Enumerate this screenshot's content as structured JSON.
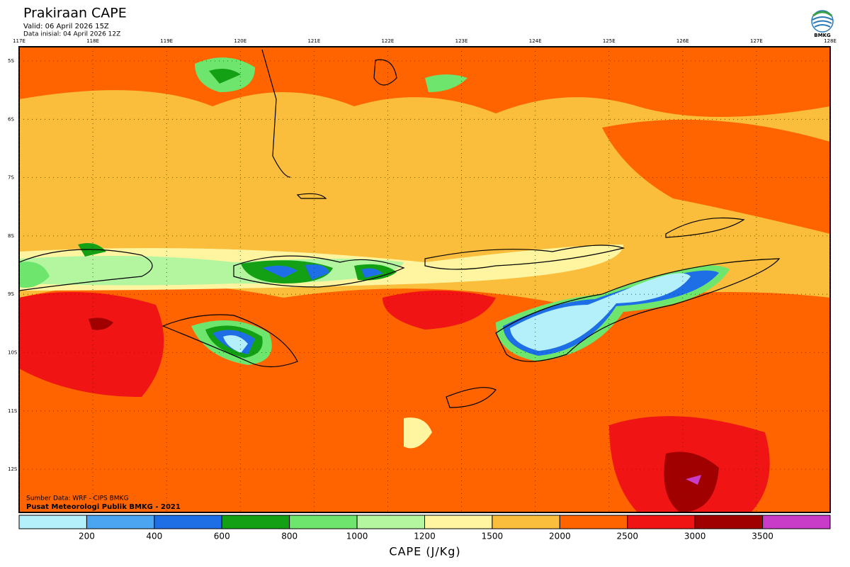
{
  "header": {
    "title": "Prakiraan CAPE",
    "valid": "Valid: 06 April 2026 15Z",
    "init": "Data inisial: 04 April 2026 12Z",
    "logo": "BMKG"
  },
  "map": {
    "lon_labels": [
      "117E",
      "118E",
      "119E",
      "120E",
      "121E",
      "122E",
      "123E",
      "124E",
      "125E",
      "126E",
      "127E",
      "128E"
    ],
    "lat_labels": [
      "5S",
      "6S",
      "7S",
      "8S",
      "9S",
      "10S",
      "11S",
      "12S"
    ],
    "source": "Sumber Data: WRF - CIPS BMKG",
    "credit": "Pusat Meteorologi Publik BMKG - 2021"
  },
  "legend": {
    "title": "CAPE (J/Kg)",
    "ticks": [
      200,
      400,
      600,
      800,
      1000,
      1200,
      1500,
      2000,
      2500,
      3000,
      3500
    ],
    "colors": [
      "#b4f0fa",
      "#4ba5f0",
      "#1e6ee6",
      "#14a014",
      "#6ee66e",
      "#b4f5a0",
      "#fff5a0",
      "#fabe3c",
      "#ff6400",
      "#f01414",
      "#a00000",
      "#c83cc8"
    ]
  }
}
